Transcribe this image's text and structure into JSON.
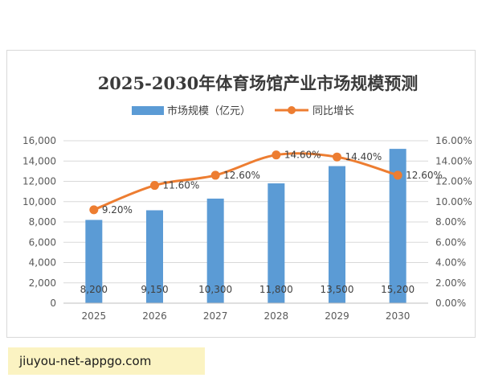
{
  "chart_data": {
    "type": "bar",
    "title": "2025-2030年体育场馆产业市场规模预测",
    "categories": [
      "2025",
      "2026",
      "2027",
      "2028",
      "2029",
      "2030"
    ],
    "series": [
      {
        "name": "市场规模（亿元）",
        "type": "bar",
        "axis": "left",
        "color": "#5b9bd5",
        "values": [
          8200,
          9150,
          10300,
          11800,
          13500,
          15200
        ],
        "labels": [
          "8,200",
          "9,150",
          "10,300",
          "11,800",
          "13,500",
          "15,200"
        ]
      },
      {
        "name": "同比增长",
        "type": "line",
        "axis": "right",
        "color": "#ed7d31",
        "values": [
          9.2,
          11.6,
          12.6,
          14.6,
          14.4,
          12.6
        ],
        "labels": [
          "9.20%",
          "11.60%",
          "12.60%",
          "14.60%",
          "14.40%",
          "12.60%"
        ]
      }
    ],
    "ylim": [
      0,
      16000
    ],
    "y_ticks": [
      "0",
      "2,000",
      "4,000",
      "6,000",
      "8,000",
      "10,000",
      "12,000",
      "14,000",
      "16,000"
    ],
    "y2lim": [
      0,
      16
    ],
    "y2_ticks": [
      "0.00%",
      "2.00%",
      "4.00%",
      "6.00%",
      "8.00%",
      "10.00%",
      "12.00%",
      "14.00%",
      "16.00%"
    ],
    "grid": true,
    "legend_position": "top-center"
  },
  "caption": "jiuyou-net-appgo.com"
}
